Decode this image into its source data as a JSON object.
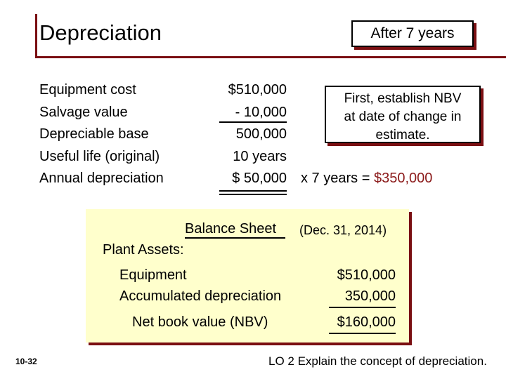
{
  "slide": {
    "title": "Depreciation",
    "tag": "After 7 years"
  },
  "computation": {
    "labels": [
      "Equipment cost",
      "Salvage value",
      "Depreciable base",
      "Useful life (original)",
      "Annual depreciation"
    ],
    "values": [
      "$510,000",
      "- 10,000",
      "500,000",
      "10 years",
      "$ 50,000"
    ]
  },
  "note": {
    "lines": [
      "First, establish NBV",
      "at date of change in",
      "estimate."
    ]
  },
  "calculation": {
    "multiplier": "x 7 years =",
    "result": "$350,000"
  },
  "balance_sheet": {
    "title": "Balance Sheet",
    "date": "(Dec. 31, 2014)",
    "section": "Plant Assets:",
    "equipment_label": "Equipment",
    "equipment_amount": "$510,000",
    "accum_label": "Accumulated depreciation",
    "accum_amount": "350,000",
    "nbv_label": "Net book value (NBV)",
    "nbv_amount": "$160,000"
  },
  "footer": {
    "slide_number": "10-32",
    "objective": "LO 2 Explain the concept of depreciation."
  },
  "colors": {
    "accent": "#7a0f12",
    "highlight_fill": "#ffffcc",
    "result_text": "#8b1a1a"
  }
}
